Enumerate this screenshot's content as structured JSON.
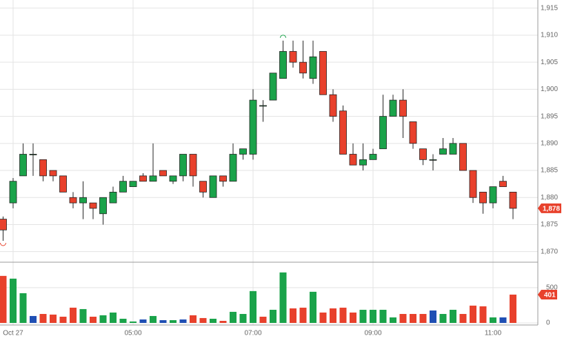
{
  "chart_data": {
    "type": "candlestick",
    "categories": [
      null,
      "Oct 27",
      null,
      null,
      null,
      null,
      null,
      null,
      null,
      null,
      null,
      null,
      null,
      "05:00",
      null,
      null,
      null,
      null,
      null,
      null,
      null,
      null,
      null,
      null,
      null,
      "07:00",
      null,
      null,
      null,
      null,
      null,
      null,
      null,
      null,
      null,
      null,
      null,
      "09:00",
      null,
      null,
      null,
      null,
      null,
      null,
      null,
      null,
      null,
      null,
      null,
      "11:00",
      null,
      null
    ],
    "open": [
      1876,
      1879,
      1884,
      1888,
      1887,
      1885,
      1884,
      1880,
      1879,
      1879,
      1877,
      1879,
      1881,
      1882,
      1884,
      1883,
      1885,
      1883,
      1884,
      1888,
      1883,
      1880,
      1884,
      1883,
      1888,
      1888,
      1897,
      1898,
      1902,
      1907,
      1905,
      1902,
      1907,
      1899,
      1896,
      1888,
      1886,
      1887,
      1889,
      1895,
      1898,
      1894,
      1889,
      1887,
      1888,
      1888,
      1890,
      1885,
      1881,
      1879,
      1883,
      1881
    ],
    "high": [
      1876.5,
      1883.6,
      1890,
      1890,
      1887,
      1885,
      1884,
      1881,
      1883,
      1879,
      1880,
      1882,
      1884,
      1883,
      1884.5,
      1890,
      1885,
      1884,
      1888,
      1888,
      1883,
      1884,
      1884,
      1890,
      1889,
      1900,
      1898,
      1903,
      1909,
      1909,
      1909,
      1909,
      1907,
      1900,
      1897,
      1890,
      1890,
      1889,
      1899,
      1899,
      1900,
      1894,
      1889,
      1888,
      1891,
      1891,
      1890,
      1885,
      1881,
      1882,
      1884,
      1881
    ],
    "low": [
      1872,
      1878,
      1884,
      1884,
      1883,
      1883,
      1881,
      1878,
      1876,
      1876,
      1875,
      1879,
      1881,
      1882,
      1883,
      1883,
      1884,
      1882.5,
      1883,
      1882,
      1880,
      1880,
      1882,
      1883,
      1887,
      1887,
      1894,
      1898,
      1902,
      1904,
      1902,
      1901,
      1899,
      1894,
      1888,
      1886,
      1885,
      1887,
      1889,
      1895,
      1891,
      1889,
      1886,
      1885,
      1888,
      1888,
      1885,
      1879,
      1877,
      1878,
      1882,
      1876
    ],
    "close": [
      1874,
      1883,
      1888,
      1888,
      1884,
      1884,
      1881,
      1879,
      1880,
      1878,
      1880,
      1881,
      1883,
      1883,
      1883,
      1884,
      1884,
      1884,
      1888,
      1884,
      1881,
      1884,
      1883,
      1888,
      1889,
      1898,
      1897,
      1903,
      1907,
      1905,
      1903,
      1906,
      1899,
      1895,
      1888,
      1886,
      1887,
      1888,
      1895,
      1898,
      1895,
      1890,
      1887,
      1887,
      1889,
      1890,
      1885,
      1880,
      1879,
      1882,
      1882,
      1878
    ],
    "up_color": "#1aa34a",
    "down_color": "#e8412c",
    "ylim": [
      1868.3,
      1916.5
    ],
    "yticks": [
      {
        "value": 1870,
        "label": "1,870"
      },
      {
        "value": 1875,
        "label": "1,875"
      },
      {
        "value": 1880,
        "label": "1,880"
      },
      {
        "value": 1885,
        "label": "1,885"
      },
      {
        "value": 1890,
        "label": "1,890"
      },
      {
        "value": 1895,
        "label": "1,895"
      },
      {
        "value": 1900,
        "label": "1,900"
      },
      {
        "value": 1905,
        "label": "1,905"
      },
      {
        "value": 1910,
        "label": "1,910"
      },
      {
        "value": 1915,
        "label": "1,915"
      }
    ],
    "last_price": {
      "value": 1878,
      "label": "1,878"
    },
    "grid": true,
    "volume": {
      "values": [
        666,
        627,
        421,
        98,
        127,
        118,
        88,
        216,
        196,
        88,
        108,
        147,
        59,
        20,
        49,
        98,
        39,
        39,
        49,
        108,
        69,
        59,
        29,
        157,
        127,
        451,
        88,
        186,
        715,
        206,
        216,
        441,
        147,
        206,
        216,
        147,
        186,
        186,
        186,
        78,
        127,
        127,
        127,
        176,
        127,
        186,
        127,
        245,
        235,
        78,
        78,
        401
      ],
      "colors": [
        "#e8412c",
        "#1aa34a",
        "#1aa34a",
        "#1f4fb4",
        "#e8412c",
        "#e8412c",
        "#e8412c",
        "#e8412c",
        "#1aa34a",
        "#e8412c",
        "#1aa34a",
        "#1aa34a",
        "#1aa34a",
        "#1aa34a",
        "#1f4fb4",
        "#1aa34a",
        "#1f4fb4",
        "#1aa34a",
        "#1f4fb4",
        "#e8412c",
        "#e8412c",
        "#1aa34a",
        "#e8412c",
        "#1aa34a",
        "#1aa34a",
        "#1aa34a",
        "#e8412c",
        "#1aa34a",
        "#1aa34a",
        "#e8412c",
        "#e8412c",
        "#1aa34a",
        "#e8412c",
        "#e8412c",
        "#e8412c",
        "#e8412c",
        "#1aa34a",
        "#1aa34a",
        "#1aa34a",
        "#1aa34a",
        "#e8412c",
        "#e8412c",
        "#e8412c",
        "#1f4fb4",
        "#1aa34a",
        "#1aa34a",
        "#e8412c",
        "#e8412c",
        "#e8412c",
        "#1aa34a",
        "#1f4fb4",
        "#e8412c"
      ],
      "ylim": [
        0,
        860
      ],
      "yticks": [
        0,
        500
      ]
    }
  }
}
